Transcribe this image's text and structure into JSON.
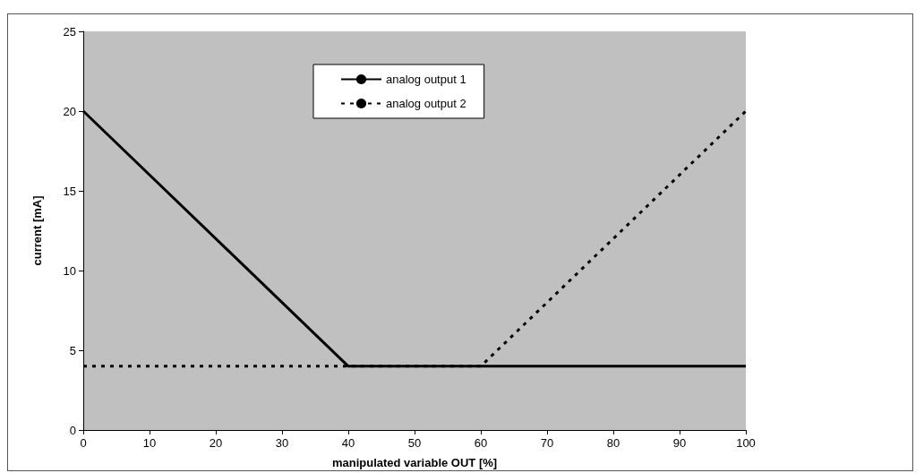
{
  "chart_data": {
    "type": "line",
    "xlabel": "manipulated variable OUT [%]",
    "ylabel": "current [mA]",
    "xlim": [
      0,
      100
    ],
    "xticks": [
      0,
      10,
      20,
      30,
      40,
      50,
      60,
      70,
      80,
      90,
      100
    ],
    "ylim": [
      0,
      25
    ],
    "yticks": [
      0,
      5,
      10,
      15,
      20,
      25
    ],
    "grid": false,
    "legend": "top",
    "marker": "none",
    "series": [
      {
        "name": "analog output 1",
        "color": "#000000",
        "line_style": "solid",
        "x": [
          0,
          40,
          100
        ],
        "values": [
          20,
          4,
          4
        ]
      },
      {
        "name": "analog output 2",
        "color": "#000000",
        "line_style": "dashed",
        "x": [
          0,
          60,
          100
        ],
        "values": [
          4,
          4,
          20
        ]
      }
    ]
  }
}
